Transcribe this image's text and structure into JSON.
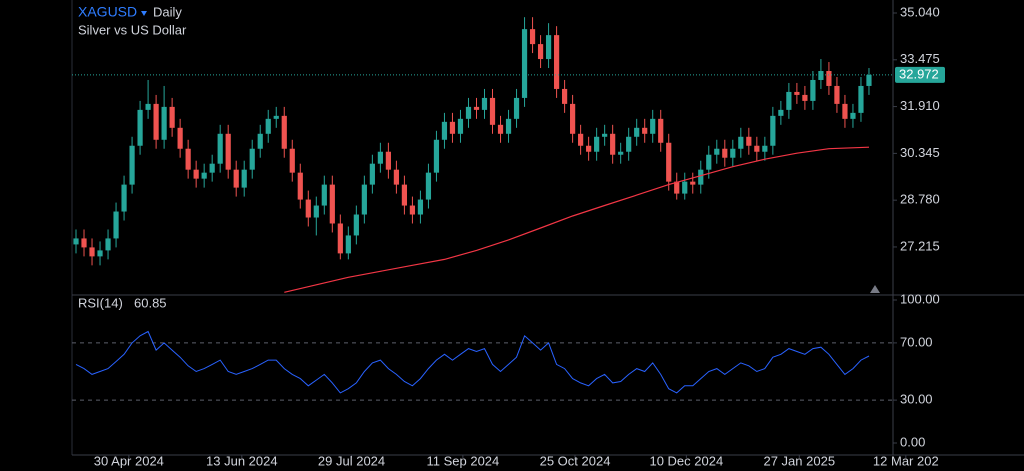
{
  "chart_data": [
    {
      "type": "candlestick",
      "title": "XAGUSD",
      "interval": "Daily",
      "subtitle": "Silver vs US Dollar",
      "xlim": [
        -0.5,
        102
      ],
      "xticks": [
        {
          "value": 6.6,
          "label": "30 Apr 2024"
        },
        {
          "value": 20.7,
          "label": "13 Jun 2024"
        },
        {
          "value": 34.4,
          "label": "29 Jul 2024"
        },
        {
          "value": 48.3,
          "label": "11 Sep 2024"
        },
        {
          "value": 62.3,
          "label": "25 Oct 2024"
        },
        {
          "value": 76.2,
          "label": "10 Dec 2024"
        },
        {
          "value": 90.3,
          "label": "27 Jan 2025"
        },
        {
          "value": 103.6,
          "label": "12 Mar 202"
        }
      ],
      "ylim": [
        25.675,
        35.475
      ],
      "yticks": [
        {
          "value": 35.04,
          "label": "35.040"
        },
        {
          "value": 33.475,
          "label": "33.475"
        },
        {
          "value": 31.91,
          "label": "31.910"
        },
        {
          "value": 30.345,
          "label": "30.345"
        },
        {
          "value": 28.78,
          "label": "28.780"
        },
        {
          "value": 27.215,
          "label": "27.215"
        }
      ],
      "up_color": "#26a69a",
      "down_color": "#ef5350",
      "open": [
        27.3,
        27.5,
        27.2,
        26.9,
        27.1,
        27.5,
        28.4,
        29.3,
        30.6,
        31.8,
        32.0,
        30.8,
        31.9,
        31.2,
        30.5,
        29.8,
        29.5,
        29.7,
        30.0,
        31.0,
        29.8,
        29.2,
        29.8,
        30.5,
        31.0,
        31.5,
        31.6,
        30.5,
        29.7,
        28.8,
        28.2,
        28.6,
        29.3,
        28.0,
        27.0,
        27.6,
        28.3,
        29.3,
        30.0,
        30.4,
        29.8,
        29.3,
        28.6,
        28.3,
        28.8,
        29.7,
        30.8,
        31.4,
        31.0,
        31.5,
        31.9,
        31.8,
        32.2,
        31.3,
        31.0,
        31.5,
        32.2,
        34.5,
        34.0,
        33.5,
        34.3,
        32.5,
        32.0,
        31.0,
        30.6,
        30.4,
        30.9,
        31.0,
        30.3,
        30.4,
        30.9,
        31.2,
        31.0,
        31.5,
        30.7,
        29.4,
        29.0,
        29.4,
        29.3,
        29.8,
        30.3,
        30.5,
        30.2,
        30.5,
        30.9,
        30.6,
        30.4,
        30.6,
        31.6,
        31.8,
        32.4,
        32.3,
        32.1,
        32.8,
        33.1,
        32.6,
        32.0,
        31.5,
        31.7,
        32.6
      ],
      "high": [
        27.8,
        27.8,
        27.5,
        27.4,
        27.8,
        28.7,
        29.6,
        30.9,
        32.1,
        32.8,
        32.3,
        32.6,
        32.2,
        31.5,
        30.8,
        30.1,
        30.0,
        30.3,
        31.3,
        31.3,
        30.1,
        30.1,
        30.8,
        31.3,
        31.8,
        31.9,
        31.9,
        30.8,
        30.0,
        29.1,
        28.9,
        29.6,
        29.6,
        28.3,
        27.9,
        28.6,
        29.6,
        30.3,
        30.7,
        30.7,
        30.1,
        29.6,
        28.9,
        29.1,
        30.0,
        31.1,
        31.7,
        31.7,
        31.8,
        32.2,
        32.2,
        32.5,
        32.5,
        31.6,
        31.8,
        32.5,
        34.9,
        34.9,
        34.3,
        34.7,
        34.6,
        32.8,
        32.3,
        31.3,
        30.9,
        31.2,
        31.3,
        31.3,
        30.7,
        31.2,
        31.5,
        31.5,
        31.8,
        31.8,
        31.0,
        29.7,
        29.7,
        29.7,
        30.1,
        30.6,
        30.8,
        30.8,
        30.8,
        31.2,
        31.2,
        30.9,
        30.9,
        31.9,
        32.1,
        32.7,
        32.7,
        32.6,
        33.1,
        33.5,
        33.4,
        32.9,
        32.3,
        32.0,
        32.9,
        33.2
      ],
      "low": [
        27.0,
        26.9,
        26.6,
        26.6,
        26.8,
        27.2,
        28.1,
        29.0,
        30.3,
        31.5,
        30.5,
        30.5,
        30.9,
        30.2,
        29.5,
        29.2,
        29.2,
        29.4,
        29.7,
        29.5,
        28.9,
        28.9,
        29.5,
        30.2,
        30.7,
        31.2,
        30.2,
        29.4,
        28.5,
        27.9,
        27.6,
        28.3,
        27.7,
        26.8,
        26.8,
        27.3,
        28.0,
        29.0,
        29.7,
        29.5,
        29.0,
        28.3,
        28.0,
        28.0,
        28.5,
        29.4,
        30.5,
        30.7,
        30.7,
        31.2,
        31.5,
        31.5,
        31.0,
        30.7,
        30.7,
        31.2,
        31.9,
        33.7,
        33.2,
        33.2,
        32.2,
        31.7,
        30.7,
        30.3,
        30.1,
        30.1,
        30.6,
        30.0,
        30.0,
        30.1,
        30.6,
        30.7,
        30.7,
        30.4,
        29.1,
        28.8,
        28.8,
        29.0,
        29.0,
        29.5,
        30.0,
        29.9,
        29.9,
        30.2,
        30.3,
        30.1,
        30.1,
        30.3,
        31.3,
        31.5,
        32.0,
        31.8,
        31.8,
        32.5,
        32.3,
        31.7,
        31.2,
        31.2,
        31.4,
        32.3
      ],
      "close": [
        27.5,
        27.2,
        26.9,
        27.1,
        27.5,
        28.4,
        29.3,
        30.6,
        31.8,
        32.0,
        30.8,
        31.9,
        31.2,
        30.5,
        29.8,
        29.5,
        29.7,
        30.0,
        31.0,
        29.8,
        29.2,
        29.8,
        30.5,
        31.0,
        31.5,
        31.6,
        30.5,
        29.7,
        28.8,
        28.2,
        28.6,
        29.3,
        28.0,
        27.0,
        27.6,
        28.3,
        29.3,
        30.0,
        30.4,
        29.8,
        29.3,
        28.6,
        28.3,
        28.8,
        29.7,
        30.8,
        31.4,
        31.0,
        31.5,
        31.9,
        31.8,
        32.2,
        31.3,
        31.0,
        31.5,
        32.2,
        34.5,
        34.0,
        33.5,
        34.3,
        32.5,
        32.0,
        31.0,
        30.6,
        30.4,
        30.9,
        31.0,
        30.3,
        30.4,
        30.9,
        31.2,
        31.0,
        31.5,
        30.7,
        29.4,
        29.0,
        29.4,
        29.3,
        29.8,
        30.3,
        30.5,
        30.2,
        30.5,
        30.9,
        30.6,
        30.4,
        30.6,
        31.6,
        31.8,
        32.4,
        32.3,
        32.1,
        32.8,
        33.1,
        32.6,
        32.0,
        31.5,
        31.7,
        32.6,
        32.972
      ],
      "last_color": "#26a69a",
      "series": [
        {
          "color": "#f23645",
          "x": [
            26,
            30,
            34,
            38,
            42,
            46,
            50,
            54,
            58,
            62,
            66,
            70,
            74,
            78,
            82,
            86,
            90,
            94,
            99
          ],
          "values": [
            25.7,
            25.95,
            26.2,
            26.4,
            26.6,
            26.8,
            27.1,
            27.45,
            27.85,
            28.25,
            28.6,
            28.95,
            29.3,
            29.6,
            29.9,
            30.15,
            30.35,
            30.5,
            30.55
          ]
        }
      ]
    },
    {
      "type": "line",
      "title": "RSI(14)",
      "xlim": [
        -0.5,
        102
      ],
      "ylim": [
        0,
        100
      ],
      "yticks": [
        {
          "value": 100,
          "label": "100.00"
        },
        {
          "value": 70,
          "label": "70.00"
        },
        {
          "value": 30,
          "label": "30.00"
        },
        {
          "value": 0,
          "label": "0.00"
        }
      ],
      "bands": [
        70,
        30
      ],
      "color": "#2962ff",
      "values": [
        55,
        52,
        48,
        50,
        52,
        57,
        62,
        70,
        75,
        78,
        65,
        70,
        65,
        60,
        54,
        50,
        52,
        55,
        58,
        50,
        48,
        50,
        52,
        55,
        58,
        58,
        52,
        48,
        45,
        40,
        44,
        48,
        42,
        35,
        38,
        42,
        50,
        56,
        58,
        52,
        48,
        43,
        40,
        45,
        52,
        58,
        62,
        58,
        62,
        66,
        64,
        66,
        55,
        50,
        55,
        60,
        75,
        70,
        65,
        70,
        55,
        52,
        45,
        42,
        40,
        45,
        48,
        42,
        43,
        48,
        52,
        50,
        56,
        48,
        38,
        35,
        40,
        40,
        45,
        50,
        52,
        48,
        52,
        56,
        54,
        50,
        52,
        60,
        62,
        66,
        64,
        62,
        66,
        67,
        62,
        55,
        48,
        52,
        58,
        60.85
      ]
    }
  ]
}
